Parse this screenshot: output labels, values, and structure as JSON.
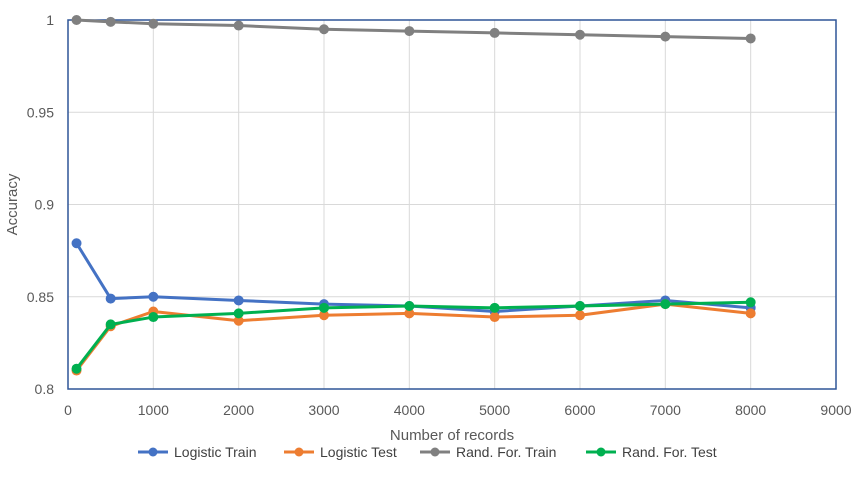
{
  "chart_data": {
    "type": "line",
    "title": "",
    "xlabel": "Number of records",
    "ylabel": "Accuracy",
    "xlim": [
      0,
      9000
    ],
    "ylim": [
      0.8,
      1.0
    ],
    "xticks": [
      0,
      1000,
      2000,
      3000,
      4000,
      5000,
      6000,
      7000,
      8000,
      9000
    ],
    "yticks": [
      0.8,
      0.85,
      0.9,
      0.95,
      1.0
    ],
    "ytick_labels": [
      "0.8",
      "0.85",
      "0.9",
      "0.95",
      "1"
    ],
    "grid": "vertical-and-horizontal",
    "legend_position": "bottom",
    "x": [
      100,
      500,
      1000,
      2000,
      3000,
      4000,
      5000,
      6000,
      7000,
      8000
    ],
    "series": [
      {
        "name": "Logistic Train",
        "color": "#4472C4",
        "values": [
          0.879,
          0.849,
          0.85,
          0.848,
          0.846,
          0.845,
          0.842,
          0.845,
          0.848,
          0.844
        ]
      },
      {
        "name": "Logistic Test",
        "color": "#ED7D31",
        "values": [
          0.81,
          0.834,
          0.842,
          0.837,
          0.84,
          0.841,
          0.839,
          0.84,
          0.846,
          0.841
        ]
      },
      {
        "name": "Rand. For. Train",
        "color": "#808080",
        "values": [
          1.0,
          0.999,
          0.998,
          0.997,
          0.995,
          0.994,
          0.993,
          0.992,
          0.991,
          0.99
        ]
      },
      {
        "name": "Rand. For. Test",
        "color": "#00B050",
        "values": [
          0.811,
          0.835,
          0.839,
          0.841,
          0.844,
          0.845,
          0.844,
          0.845,
          0.846,
          0.847
        ]
      }
    ]
  }
}
